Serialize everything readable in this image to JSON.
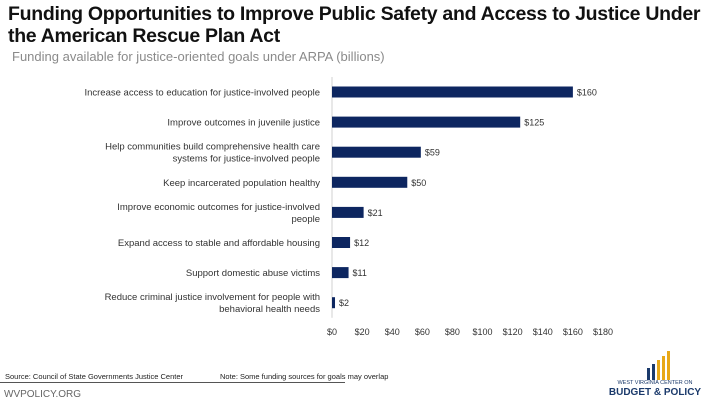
{
  "title": "Funding Opportunities to Improve Public Safety and Access to Justice Under the American Rescue Plan Act",
  "subtitle": "Funding available for justice-oriented goals under ARPA (billions)",
  "footer": {
    "source": "Source: Council of State Governments Justice Center",
    "note": "Note: Some funding sources for goals may overlap",
    "site": "WVPOLICY.ORG",
    "logo_line1": "WEST VIRGINIA CENTER ON",
    "logo_line2": "BUDGET & POLICY"
  },
  "colors": {
    "bar": "#0d2660",
    "logo_gold": "#e8a817",
    "logo_navy": "#1b3a6b"
  },
  "chart_data": {
    "type": "bar",
    "orientation": "horizontal",
    "categories": [
      "Increase access to education for justice-involved people",
      "Improve outcomes in juvenile justice",
      "Help communities build comprehensive health care systems for justice-involved people",
      "Keep incarcerated population healthy",
      "Improve economic outcomes for justice-involved people",
      "Expand access to stable and affordable housing",
      "Support domestic abuse victims",
      "Reduce criminal justice involvement for people with behavioral health needs"
    ],
    "category_lines": [
      [
        "Increase access to education for justice-involved people"
      ],
      [
        "Improve outcomes in juvenile justice"
      ],
      [
        "Help communities build comprehensive health care",
        "systems for justice-involved people"
      ],
      [
        "Keep incarcerated population healthy"
      ],
      [
        "Improve economic outcomes for justice-involved",
        "people"
      ],
      [
        "Expand access to stable and affordable housing"
      ],
      [
        "Support domestic abuse victims"
      ],
      [
        "Reduce criminal justice involvement for people with",
        "behavioral health needs"
      ]
    ],
    "values": [
      160,
      125,
      59,
      50,
      21,
      12,
      11,
      2
    ],
    "data_labels": [
      "$160",
      "$125",
      "$59",
      "$50",
      "$21",
      "$12",
      "$11",
      "$2"
    ],
    "xlim": [
      0,
      180
    ],
    "xticks": [
      "$0",
      "$20",
      "$40",
      "$60",
      "$80",
      "$100",
      "$120",
      "$140",
      "$160",
      "$180"
    ],
    "grid": false
  }
}
